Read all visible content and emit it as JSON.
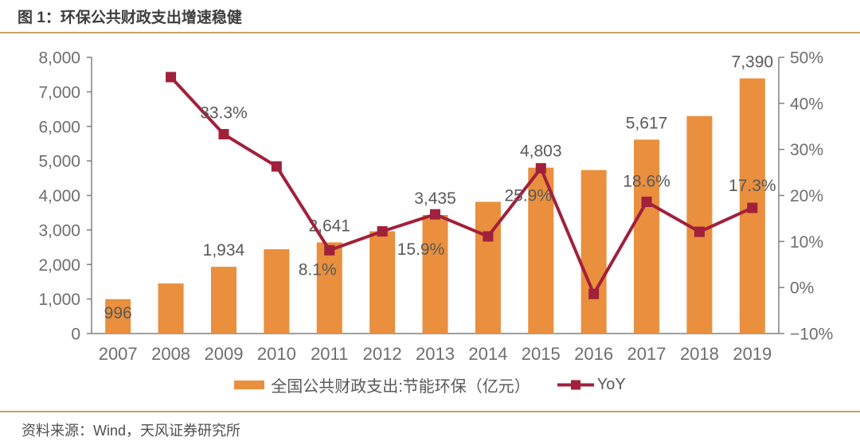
{
  "header": {
    "title": "图 1：环保公共财政支出增速稳健"
  },
  "footer": {
    "source": "资料来源：Wind，天风证券研究所"
  },
  "legend": {
    "bar_label": "全国公共财政支出:节能环保（亿元）",
    "line_label": "YoY"
  },
  "colors": {
    "bar": "#E98F3D",
    "line": "#A1203B",
    "axis_line": "#808080",
    "tick_label": "#6E6E6E",
    "data_label": "#595959",
    "title": "#3E3E3E",
    "rule": "#C9A264"
  },
  "chart_data": {
    "type": "bar+line",
    "title": "环保公共财政支出增速稳健",
    "categories": [
      "2007",
      "2008",
      "2009",
      "2010",
      "2011",
      "2012",
      "2013",
      "2014",
      "2015",
      "2016",
      "2017",
      "2018",
      "2019"
    ],
    "series": [
      {
        "name": "全国公共财政支出:节能环保（亿元）",
        "type": "bar",
        "axis": "left",
        "color": "#E98F3D",
        "values": [
          996,
          1451,
          1934,
          2442,
          2641,
          2963,
          3435,
          3816,
          4803,
          4735,
          5617,
          6298,
          7390
        ],
        "point_labels": [
          {
            "i": 0,
            "text": "996"
          },
          {
            "i": 2,
            "text": "1,934"
          },
          {
            "i": 4,
            "text": "2,641"
          },
          {
            "i": 6,
            "text": "3,435"
          },
          {
            "i": 8,
            "text": "4,803"
          },
          {
            "i": 10,
            "text": "5,617"
          },
          {
            "i": 12,
            "text": "7,390"
          }
        ]
      },
      {
        "name": "YoY",
        "type": "line",
        "axis": "right",
        "color": "#A1203B",
        "values": [
          null,
          45.7,
          33.3,
          26.3,
          8.1,
          12.2,
          15.9,
          11.1,
          25.9,
          -1.4,
          18.6,
          12.1,
          17.3
        ],
        "point_labels": [
          {
            "i": 2,
            "text": "33.3%"
          },
          {
            "i": 4,
            "text": "8.1%"
          },
          {
            "i": 6,
            "text": "15.9%"
          },
          {
            "i": 8,
            "text": "25.9%"
          },
          {
            "i": 10,
            "text": "18.6%"
          },
          {
            "i": 12,
            "text": "17.3%"
          }
        ]
      }
    ],
    "left_axis": {
      "min": 0,
      "max": 8000,
      "step": 1000,
      "tick_labels": [
        "0",
        "1,000",
        "2,000",
        "3,000",
        "4,000",
        "5,000",
        "6,000",
        "7,000",
        "8,000"
      ]
    },
    "right_axis": {
      "min": -10,
      "max": 50,
      "step": 10,
      "tick_labels": [
        "−10%",
        "0%",
        "10%",
        "20%",
        "30%",
        "40%",
        "50%"
      ]
    },
    "grid": false,
    "legend_position": "bottom"
  }
}
